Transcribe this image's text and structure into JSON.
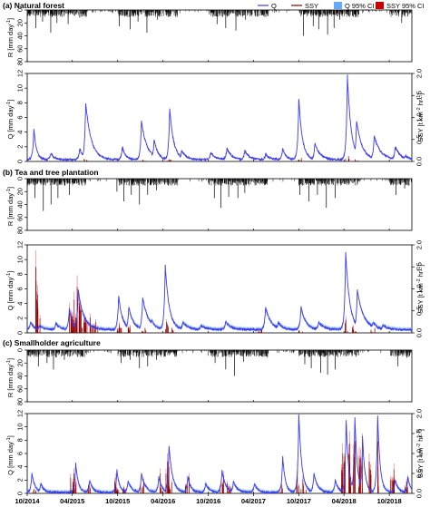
{
  "chart_data": {
    "type": "line",
    "x_ticks": [
      "10/2014",
      "04/2015",
      "10/2015",
      "04/2016",
      "10/2016",
      "04/2017",
      "10/2017",
      "04/2018",
      "10/2018"
    ],
    "x_range": [
      "2014-10-01",
      "2018-12-31"
    ],
    "legend": [
      "Q",
      "SSY",
      "Q 95% CI",
      "SSY 95% CI"
    ],
    "colors": {
      "Q": "#3a3af0",
      "SSY": "#8b0000",
      "Q_CI": "#66aaff",
      "SSY_CI": "#cc0000",
      "R": "#000000"
    },
    "rain_axis": {
      "label": "R [mm day",
      "sup": "-1",
      "suffix": "]",
      "ticks": [
        "0",
        "20",
        "40",
        "60",
        "80"
      ],
      "ylim": [
        0,
        80
      ]
    },
    "q_axis": {
      "label": "Q [mm day",
      "sup": "-1",
      "suffix": "]",
      "ticks": [
        "0",
        "2",
        "4",
        "6",
        "8",
        "10",
        "12"
      ],
      "ylim": [
        0,
        12
      ]
    },
    "ssy_axis": {
      "label": "SSY [t km",
      "sup1": "-2",
      "mid": " hr",
      "sup2": "-1",
      "suffix": "]",
      "ticks": [
        "0.0",
        "0.5",
        "1.0",
        "1.5",
        "2.0"
      ],
      "ylim": [
        0,
        2
      ]
    },
    "panels": [
      {
        "title": "(a) Natural forest",
        "rain_events": [
          [
            "2014-11-05",
            28
          ],
          [
            "2014-12-02",
            18
          ],
          [
            "2015-01-04",
            35
          ],
          [
            "2015-01-29",
            20
          ],
          [
            "2015-03-15",
            22
          ],
          [
            "2015-05-01",
            12
          ],
          [
            "2015-10-08",
            25
          ],
          [
            "2015-11-20",
            30
          ],
          [
            "2015-12-22",
            18
          ],
          [
            "2016-01-27",
            35
          ],
          [
            "2016-03-10",
            15
          ],
          [
            "2016-11-05",
            22
          ],
          [
            "2016-12-10",
            28
          ],
          [
            "2017-01-20",
            32
          ],
          [
            "2017-02-28",
            15
          ],
          [
            "2017-10-20",
            40
          ],
          [
            "2017-11-28",
            25
          ],
          [
            "2017-12-20",
            30
          ],
          [
            "2018-01-25",
            38
          ],
          [
            "2018-02-20",
            28
          ],
          [
            "2018-03-15",
            15
          ],
          [
            "2018-11-20",
            20
          ],
          [
            "2018-12-15",
            10
          ]
        ],
        "q_peaks": [
          [
            "2014-10-28",
            4.5,
            10
          ],
          [
            "2015-01-05",
            1.2,
            12
          ],
          [
            "2015-05-01",
            1.8,
            12
          ],
          [
            "2015-05-25",
            8.0,
            22
          ],
          [
            "2015-10-20",
            2.0,
            12
          ],
          [
            "2016-01-05",
            5.5,
            22
          ],
          [
            "2016-02-25",
            3.0,
            15
          ],
          [
            "2016-04-28",
            7.2,
            16
          ],
          [
            "2016-06-15",
            1.5,
            18
          ],
          [
            "2016-10-10",
            1.2,
            20
          ],
          [
            "2016-12-15",
            1.8,
            18
          ],
          [
            "2017-02-25",
            1.5,
            18
          ],
          [
            "2017-05-20",
            1.0,
            15
          ],
          [
            "2017-07-28",
            1.8,
            12
          ],
          [
            "2017-10-01",
            8.6,
            14
          ],
          [
            "2017-12-05",
            2.5,
            20
          ],
          [
            "2018-04-15",
            11.8,
            15
          ],
          [
            "2018-05-22",
            5.5,
            22
          ],
          [
            "2018-08-01",
            3.5,
            25
          ],
          [
            "2018-10-25",
            2.0,
            20
          ],
          [
            "2018-12-05",
            0.8,
            15
          ]
        ],
        "q_baseline": 0.25,
        "ssy_events": [
          [
            "2015-05-22",
            0.06
          ],
          [
            "2016-01-08",
            0.04
          ],
          [
            "2016-04-26",
            0.05
          ],
          [
            "2017-10-02",
            0.08
          ],
          [
            "2018-04-12",
            0.12
          ],
          [
            "2018-05-20",
            0.05
          ]
        ],
        "show_ci": false
      },
      {
        "title": "(b) Tea and tree plantation",
        "rain_events": [
          [
            "2014-11-01",
            30
          ],
          [
            "2014-12-05",
            50
          ],
          [
            "2015-01-05",
            40
          ],
          [
            "2015-02-02",
            30
          ],
          [
            "2015-03-20",
            25
          ],
          [
            "2015-09-28",
            20
          ],
          [
            "2015-10-26",
            35
          ],
          [
            "2015-11-25",
            25
          ],
          [
            "2015-12-28",
            40
          ],
          [
            "2016-01-30",
            25
          ],
          [
            "2016-03-05",
            18
          ],
          [
            "2016-10-25",
            30
          ],
          [
            "2016-11-20",
            45
          ],
          [
            "2016-12-22",
            28
          ],
          [
            "2017-01-28",
            30
          ],
          [
            "2017-02-25",
            22
          ],
          [
            "2017-10-05",
            25
          ],
          [
            "2017-11-10",
            35
          ],
          [
            "2017-12-15",
            25
          ],
          [
            "2018-01-20",
            45
          ],
          [
            "2018-02-25",
            30
          ],
          [
            "2018-10-28",
            25
          ],
          [
            "2018-12-02",
            15
          ]
        ],
        "q_peaks": [
          [
            "2014-10-15",
            1.5,
            12
          ],
          [
            "2014-11-20",
            1.0,
            15
          ],
          [
            "2015-01-25",
            1.3,
            15
          ],
          [
            "2015-03-20",
            3.3,
            12
          ],
          [
            "2015-04-25",
            5.8,
            22
          ],
          [
            "2015-10-05",
            5.0,
            15
          ],
          [
            "2015-11-15",
            3.5,
            18
          ],
          [
            "2016-01-10",
            4.8,
            22
          ],
          [
            "2016-02-15",
            1.8,
            15
          ],
          [
            "2016-04-10",
            9.2,
            16
          ],
          [
            "2016-06-20",
            1.5,
            20
          ],
          [
            "2016-09-01",
            1.0,
            20
          ],
          [
            "2016-12-10",
            1.5,
            20
          ],
          [
            "2017-05-20",
            3.5,
            20
          ],
          [
            "2017-07-10",
            1.5,
            15
          ],
          [
            "2017-10-10",
            3.5,
            18
          ],
          [
            "2017-12-20",
            1.5,
            20
          ],
          [
            "2018-04-08",
            11.0,
            16
          ],
          [
            "2018-05-25",
            5.8,
            25
          ],
          [
            "2018-07-28",
            1.5,
            15
          ],
          [
            "2018-09-05",
            1.0,
            20
          ]
        ],
        "q_baseline": 0.45,
        "ssy_events": [
          [
            "2014-11-10",
            1.5
          ],
          [
            "2015-03-25",
            0.55
          ],
          [
            "2015-04-08",
            0.75
          ],
          [
            "2015-04-25",
            1.05
          ],
          [
            "2015-05-10",
            0.5
          ],
          [
            "2015-05-28",
            0.3
          ],
          [
            "2015-06-15",
            0.35
          ],
          [
            "2015-07-05",
            0.25
          ],
          [
            "2015-10-05",
            0.2
          ],
          [
            "2015-11-12",
            0.15
          ],
          [
            "2016-01-12",
            0.1
          ],
          [
            "2016-04-12",
            0.25
          ],
          [
            "2016-05-05",
            0.1
          ],
          [
            "2017-04-25",
            0.08
          ],
          [
            "2017-10-08",
            0.06
          ],
          [
            "2018-04-05",
            0.3
          ],
          [
            "2018-05-10",
            0.15
          ],
          [
            "2018-07-25",
            0.1
          ]
        ],
        "show_ci": true
      },
      {
        "title": "(c) Smallholder agriculture",
        "rain_events": [
          [
            "2014-11-15",
            25
          ],
          [
            "2014-12-20",
            20
          ],
          [
            "2015-01-15",
            30
          ],
          [
            "2015-02-28",
            15
          ],
          [
            "2015-10-15",
            20
          ],
          [
            "2015-11-20",
            15
          ],
          [
            "2015-12-28",
            28
          ],
          [
            "2016-01-30",
            25
          ],
          [
            "2016-03-05",
            15
          ],
          [
            "2016-10-28",
            20
          ],
          [
            "2016-12-10",
            30
          ],
          [
            "2017-01-15",
            40
          ],
          [
            "2017-02-20",
            18
          ],
          [
            "2017-10-25",
            22
          ],
          [
            "2017-11-20",
            28
          ],
          [
            "2017-12-28",
            35
          ],
          [
            "2018-01-25",
            38
          ],
          [
            "2018-02-25",
            30
          ],
          [
            "2018-11-05",
            25
          ],
          [
            "2018-12-10",
            12
          ]
        ],
        "q_peaks": [
          [
            "2014-10-20",
            3.0,
            12
          ],
          [
            "2014-11-25",
            1.5,
            12
          ],
          [
            "2015-04-15",
            4.5,
            10
          ],
          [
            "2015-06-10",
            2.0,
            12
          ],
          [
            "2015-09-28",
            3.5,
            10
          ],
          [
            "2015-11-12",
            1.8,
            15
          ],
          [
            "2016-01-05",
            3.0,
            15
          ],
          [
            "2016-03-15",
            2.5,
            12
          ],
          [
            "2016-04-25",
            7.2,
            14
          ],
          [
            "2016-07-10",
            2.5,
            12
          ],
          [
            "2016-09-20",
            1.5,
            15
          ],
          [
            "2016-11-25",
            3.5,
            14
          ],
          [
            "2017-01-10",
            1.8,
            15
          ],
          [
            "2017-04-05",
            1.5,
            12
          ],
          [
            "2017-07-28",
            5.5,
            10
          ],
          [
            "2017-10-01",
            11.8,
            12
          ],
          [
            "2017-12-01",
            3.0,
            15
          ],
          [
            "2018-02-25",
            2.0,
            12
          ],
          [
            "2018-04-10",
            11.0,
            10
          ],
          [
            "2018-05-15",
            11.5,
            10
          ],
          [
            "2018-06-15",
            8.5,
            10
          ],
          [
            "2018-08-15",
            11.8,
            10
          ],
          [
            "2018-10-25",
            2.0,
            12
          ],
          [
            "2018-12-15",
            2.5,
            10
          ]
        ],
        "q_baseline": 0.15,
        "ssy_events": [
          [
            "2014-10-25",
            0.1
          ],
          [
            "2015-03-28",
            0.5
          ],
          [
            "2015-04-12",
            0.3
          ],
          [
            "2015-06-05",
            0.2
          ],
          [
            "2015-09-25",
            0.4
          ],
          [
            "2015-10-25",
            0.15
          ],
          [
            "2016-01-05",
            0.3
          ],
          [
            "2016-03-20",
            0.5
          ],
          [
            "2016-04-15",
            0.8
          ],
          [
            "2016-04-28",
            0.65
          ],
          [
            "2016-07-05",
            0.4
          ],
          [
            "2016-11-20",
            0.45
          ],
          [
            "2016-12-20",
            0.25
          ],
          [
            "2017-07-20",
            0.2
          ],
          [
            "2017-09-28",
            0.6
          ],
          [
            "2017-10-20",
            0.35
          ],
          [
            "2018-03-25",
            1.0
          ],
          [
            "2018-04-20",
            1.25
          ],
          [
            "2018-05-15",
            1.3
          ],
          [
            "2018-06-05",
            1.2
          ],
          [
            "2018-07-10",
            0.8
          ],
          [
            "2018-08-20",
            1.3
          ],
          [
            "2018-10-10",
            0.6
          ],
          [
            "2018-12-05",
            0.3
          ]
        ],
        "show_ci": true
      }
    ]
  }
}
